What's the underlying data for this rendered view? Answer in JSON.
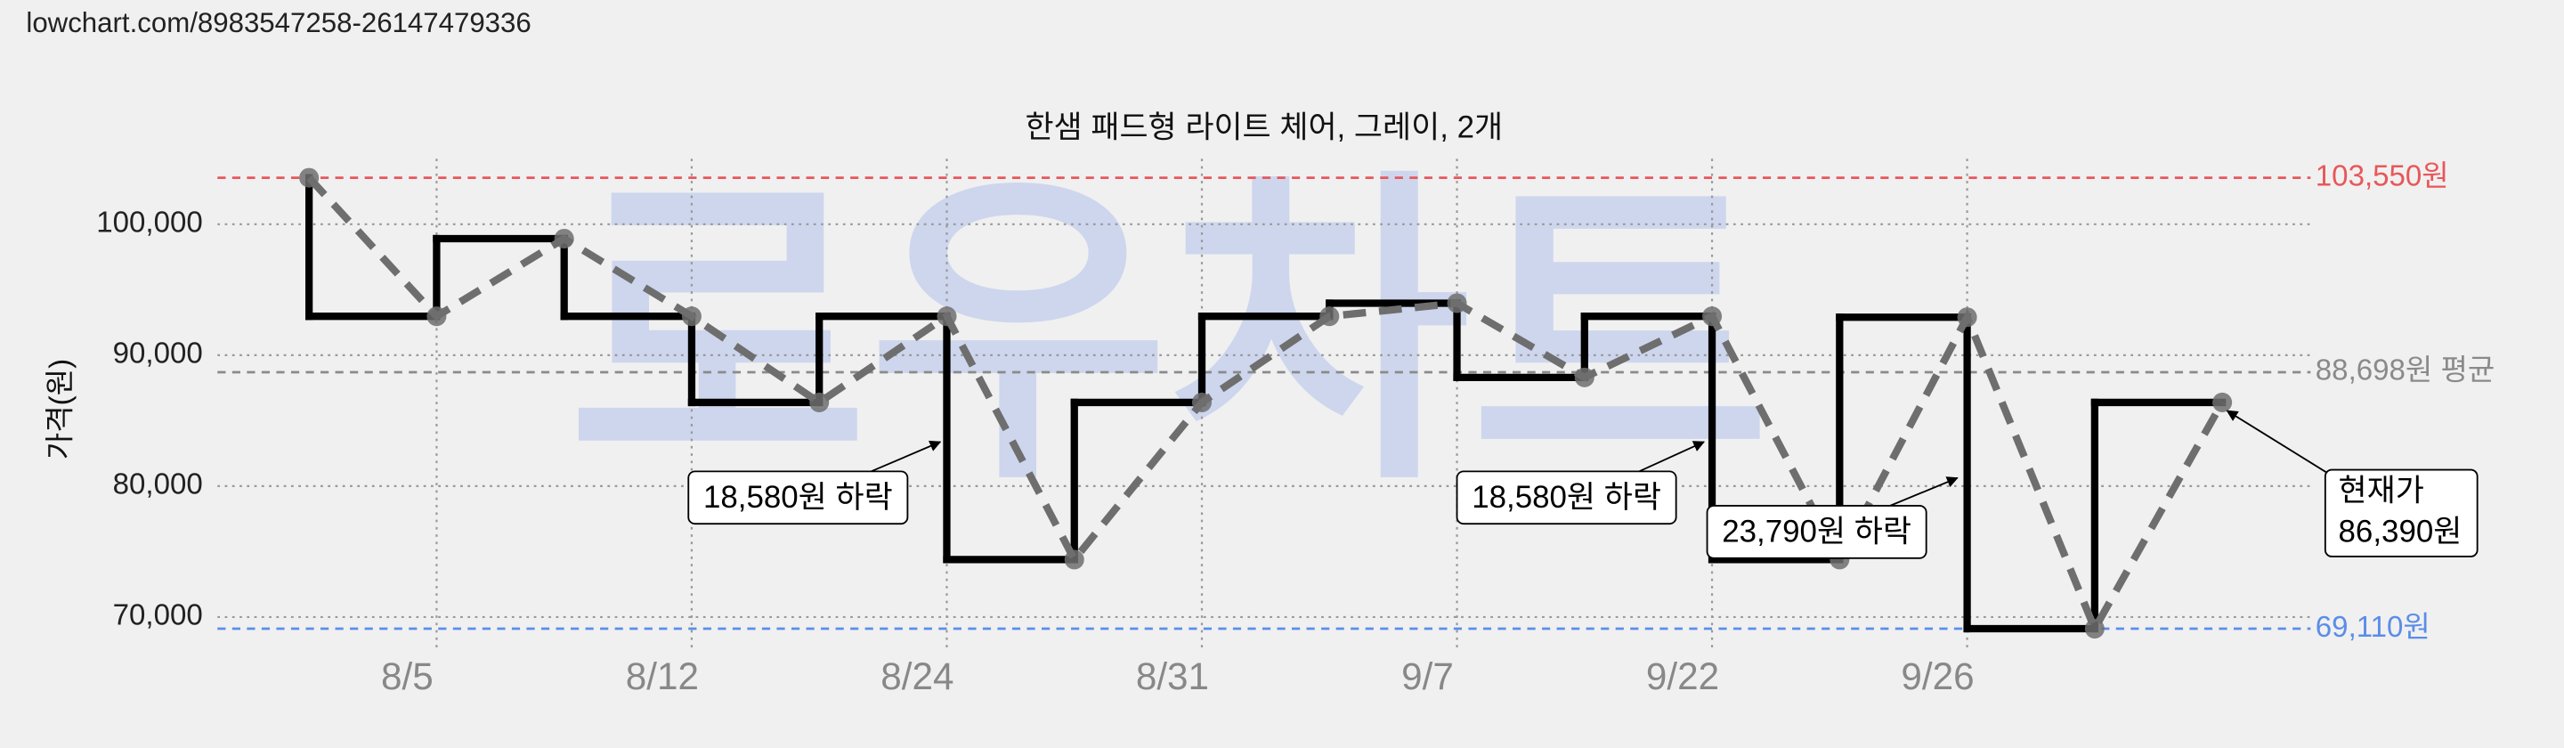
{
  "header": "lowchart.com/8983547258-26147479336",
  "chart_data": {
    "type": "line",
    "title": "한샘 패드형 라이트 체어, 그레이, 2개",
    "watermark": "로우차트",
    "y_label": "가격(원)",
    "categories": [
      null,
      "8/5",
      null,
      "8/12",
      null,
      "8/24",
      null,
      "8/31",
      null,
      "9/7",
      null,
      "9/22",
      null,
      "9/26",
      null,
      null
    ],
    "values": [
      103550,
      92970,
      98900,
      92970,
      86390,
      92970,
      74390,
      86390,
      92970,
      93970,
      88300,
      92970,
      74390,
      92900,
      69110,
      86390
    ],
    "step_color": "#000000",
    "line_color": "#6e6e6e",
    "ylim": [
      67500,
      105000
    ],
    "yticks": [
      {
        "value": 70000,
        "label": "70,000"
      },
      {
        "value": 80000,
        "label": "80,000"
      },
      {
        "value": 90000,
        "label": "90,000"
      },
      {
        "value": 100000,
        "label": "100,000"
      }
    ],
    "grid": true,
    "reference_lines": [
      {
        "value": 103550,
        "label": "103,550원",
        "color": "#e8575a"
      },
      {
        "value": 88698,
        "label": "88,698원 평균",
        "color": "#8a8a8a"
      },
      {
        "value": 69110,
        "label": "69,110원",
        "color": "#5b8de8"
      }
    ],
    "annotations": [
      "18,580원 하락",
      "18,580원 하락",
      "23,790원 하락"
    ],
    "current_price_label": [
      "현재가",
      "86,390원"
    ]
  }
}
